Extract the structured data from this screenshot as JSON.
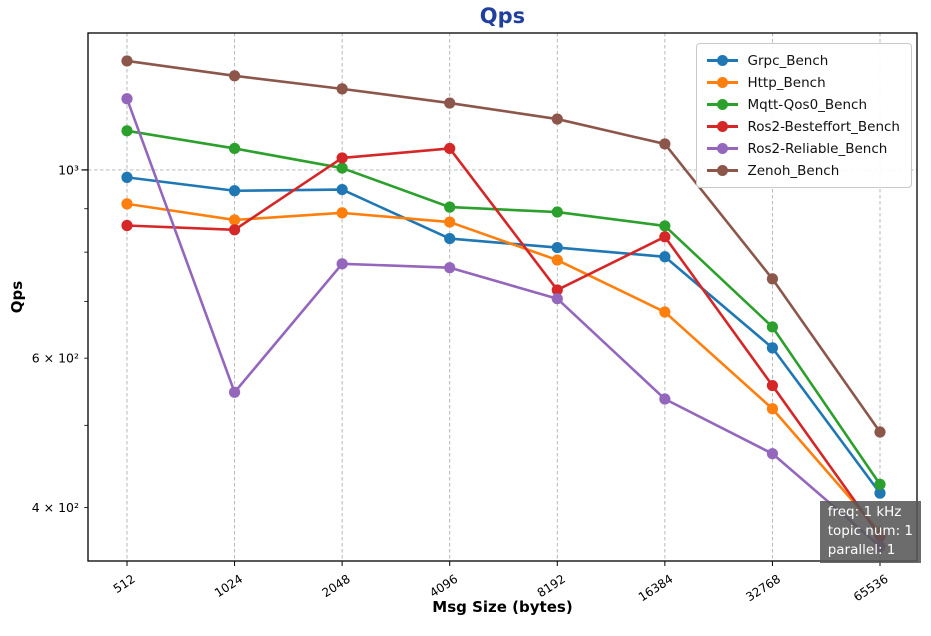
{
  "chart_data": {
    "type": "line",
    "title": "Qps",
    "title_color": "#21409e",
    "xlabel": "Msg Size (bytes)",
    "ylabel": "Qps",
    "x_scale": "category",
    "y_scale": "log",
    "grid": {
      "vertical": "dashed at every x tick",
      "horizontal": "dashed at major tick 1000 only"
    },
    "legend_position": "top-right",
    "categories": [
      "512",
      "1024",
      "2048",
      "4096",
      "8192",
      "16384",
      "32768",
      "65536"
    ],
    "series": [
      {
        "name": "Grpc_Bench",
        "color": "#1f77b4",
        "values": [
          980,
          945,
          948,
          830,
          810,
          790,
          617,
          416
        ]
      },
      {
        "name": "Http_Bench",
        "color": "#ff7f0e",
        "values": [
          912,
          873,
          890,
          868,
          783,
          680,
          523,
          374
        ]
      },
      {
        "name": "Mqtt-Qos0_Bench",
        "color": "#2ca02c",
        "values": [
          1112,
          1060,
          1005,
          904,
          892,
          859,
          653,
          426
        ]
      },
      {
        "name": "Ros2-Besteffort_Bench",
        "color": "#d62728",
        "values": [
          860,
          850,
          1033,
          1060,
          722,
          834,
          557,
          370
        ]
      },
      {
        "name": "Ros2-Reliable_Bench",
        "color": "#9467bd",
        "values": [
          1213,
          547,
          775,
          767,
          705,
          537,
          463,
          360
        ]
      },
      {
        "name": "Zenoh_Bench",
        "color": "#8c564b",
        "values": [
          1344,
          1291,
          1246,
          1199,
          1148,
          1073,
          744,
          491
        ]
      }
    ],
    "y_ticks": [
      {
        "value": 1000,
        "label": "10³",
        "major": true
      },
      {
        "value": 900
      },
      {
        "value": 800
      },
      {
        "value": 700
      },
      {
        "value": 600,
        "label": "6 × 10²"
      },
      {
        "value": 500
      },
      {
        "value": 400,
        "label": "4 × 10²"
      }
    ],
    "ylim": [
      346,
      1450
    ],
    "annotation": [
      "freq: 1 kHz",
      "topic num: 1",
      "parallel: 1"
    ]
  }
}
